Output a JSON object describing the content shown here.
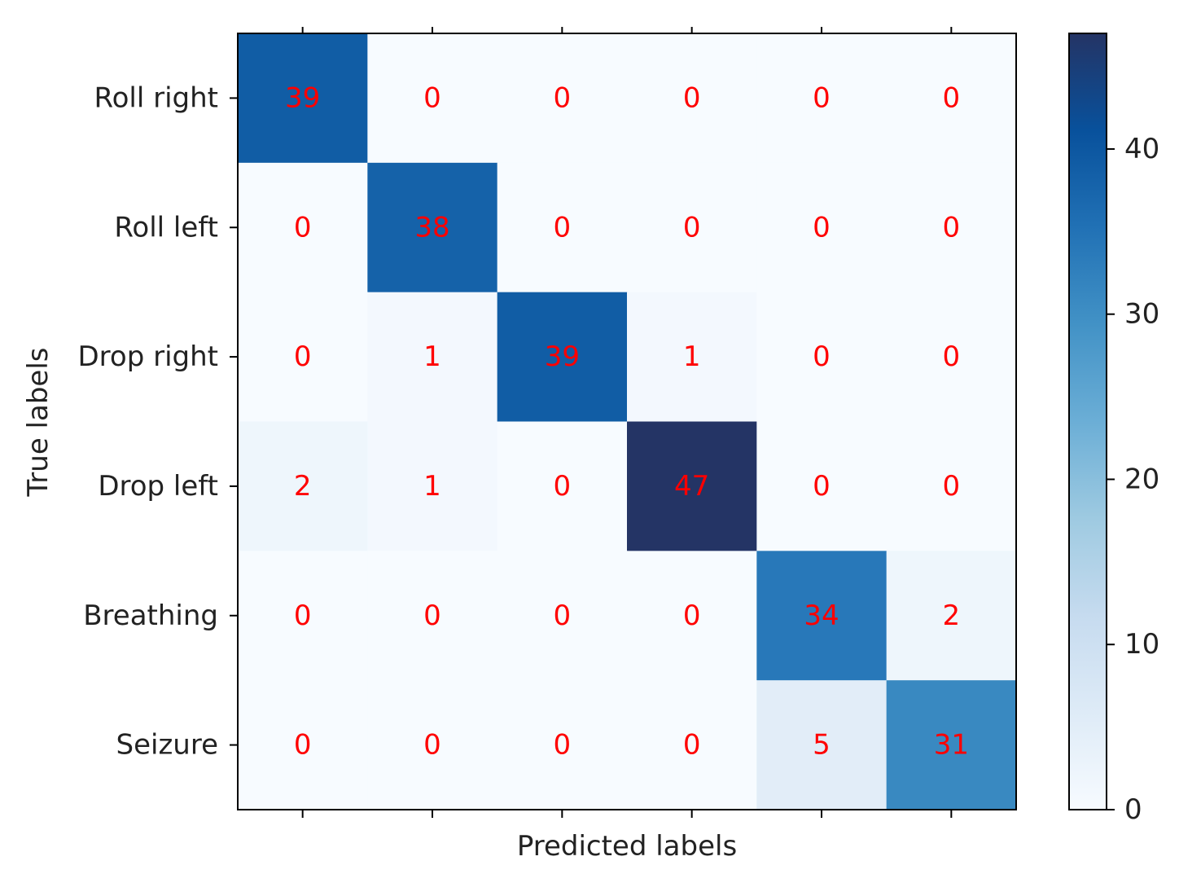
{
  "chart_data": {
    "type": "heatmap",
    "title": "",
    "xlabel": "Predicted labels",
    "ylabel": "True labels",
    "row_labels": [
      "Roll right",
      "Roll left",
      "Drop right",
      "Drop left",
      "Breathing",
      "Seizure"
    ],
    "col_labels": [
      "",
      "",
      "",
      "",
      "",
      ""
    ],
    "values": [
      [
        39,
        0,
        0,
        0,
        0,
        0
      ],
      [
        0,
        38,
        0,
        0,
        0,
        0
      ],
      [
        0,
        1,
        39,
        1,
        0,
        0
      ],
      [
        2,
        1,
        0,
        47,
        0,
        0
      ],
      [
        0,
        0,
        0,
        0,
        34,
        2
      ],
      [
        0,
        0,
        0,
        0,
        5,
        31
      ]
    ],
    "colorbar": {
      "min": 0,
      "max": 47,
      "ticks": [
        0,
        10,
        20,
        30,
        40
      ],
      "colormap": "Blues"
    },
    "annotation_color": "#ff0000",
    "grid": false
  }
}
